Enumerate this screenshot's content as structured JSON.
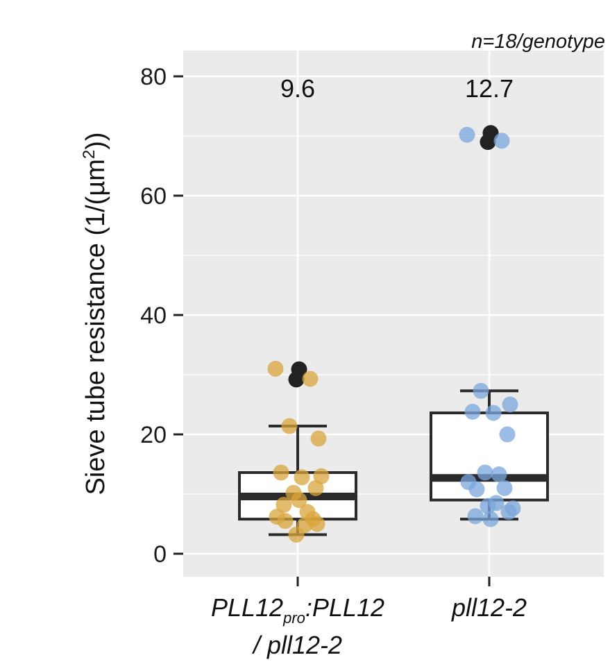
{
  "chart_data": {
    "type": "box",
    "ylabel": "Sieve tube resistance (1/(µm",
    "ylabel_sup": "2",
    "ylabel_close": "))",
    "ylim": [
      -4,
      84
    ],
    "yticks": [
      0,
      20,
      40,
      60,
      80
    ],
    "grid": true,
    "annotation": "n=18/genotype",
    "groups": [
      {
        "label_parts": {
          "a": "PLL12",
          "sub": "pro",
          "b": ":PLL12",
          "line2": "/ pll12-2"
        },
        "median_label": "9.6",
        "color": "#d9a43b",
        "box": {
          "q1": 5.8,
          "median": 9.6,
          "q3": 13.6,
          "whisker_low": 3.2,
          "whisker_high": 21.4
        },
        "points": [
          31.0,
          29.3,
          21.4,
          19.3,
          13.6,
          12.8,
          11.0,
          10.2,
          7.0,
          6.2,
          5.8,
          5.5,
          4.8,
          3.2,
          13.0,
          8.2,
          9.0,
          5.0
        ],
        "outliers": [
          29.2,
          30.9
        ]
      },
      {
        "label_parts": {
          "a": "pll12-2"
        },
        "median_label": "12.7",
        "color": "#7aa7dc",
        "box": {
          "q1": 9.0,
          "median": 12.7,
          "q3": 23.6,
          "whisker_low": 5.8,
          "whisker_high": 27.3
        },
        "points": [
          70.2,
          69.2,
          27.3,
          25.0,
          23.8,
          23.6,
          20.0,
          13.6,
          13.3,
          12.0,
          11.0,
          10.8,
          8.5,
          8.0,
          7.6,
          6.3,
          5.8,
          7.0
        ],
        "outliers": [
          69.0,
          70.5
        ]
      }
    ]
  },
  "colors": {
    "panel": "#ebebeb",
    "grid": "#ffffff",
    "outlier": "#222222"
  }
}
